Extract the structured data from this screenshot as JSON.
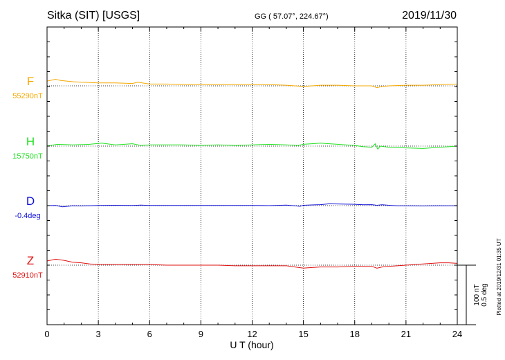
{
  "header": {
    "station": "Sitka (SIT)  [USGS]",
    "coords": "GG ( 57.07°, 224.67°)",
    "date": "2019/11/30"
  },
  "plotted_note": "Plotted at 2019/12/31 01:35 UT",
  "scale_bar": {
    "line1": "100 nT",
    "line2": "0.5 deg"
  },
  "colors": {
    "F": "#f5a800",
    "H": "#1fe01f",
    "D": "#1010d8",
    "Z": "#e01010"
  },
  "chart_data": {
    "type": "line",
    "title": "Sitka (SIT)  [USGS]",
    "xlabel": "U T (hour)",
    "ylabel": "",
    "xlim": [
      0,
      24
    ],
    "x_ticks": [
      0,
      3,
      6,
      9,
      12,
      15,
      18,
      21,
      24
    ],
    "x_tick_labels": [
      "0",
      "3",
      "6",
      "9",
      "12",
      "15",
      "18",
      "21",
      "24"
    ],
    "grid": true,
    "scale_nT_per_bar": 100,
    "series": [
      {
        "name": "F",
        "baseline_label": "55290nT",
        "baseline": 55290,
        "unit": "nT",
        "x": [
          0,
          0.5,
          0.8,
          1.5,
          2,
          3,
          4,
          5,
          5.3,
          6,
          7,
          8,
          9,
          10,
          11,
          12,
          13,
          14,
          14.5,
          15,
          15.5,
          16,
          17,
          18,
          19,
          19.3,
          19.6,
          20,
          21,
          22,
          23,
          24
        ],
        "y": [
          55298,
          55301,
          55299,
          55297,
          55296,
          55295,
          55295,
          55294,
          55296,
          55293,
          55293,
          55292,
          55292,
          55292,
          55292,
          55292,
          55292,
          55291,
          55290,
          55289,
          55290,
          55291,
          55291,
          55290,
          55290,
          55287,
          55289,
          55290,
          55291,
          55291,
          55292,
          55293
        ]
      },
      {
        "name": "H",
        "baseline_label": "15750nT",
        "baseline": 15750,
        "unit": "nT",
        "x": [
          0,
          0.6,
          1.5,
          2.5,
          3.2,
          4,
          5,
          5.5,
          6,
          7,
          8,
          9,
          10,
          11,
          12,
          13,
          14,
          14.7,
          15,
          15.5,
          16,
          16.5,
          17,
          18,
          18.5,
          19,
          19.2,
          19.35,
          19.5,
          20,
          21,
          22,
          23,
          24
        ],
        "y": [
          15750,
          15753,
          15752,
          15753,
          15755,
          15752,
          15754,
          15751,
          15752,
          15752,
          15752,
          15751,
          15752,
          15751,
          15752,
          15753,
          15752,
          15751,
          15753,
          15754,
          15755,
          15754,
          15753,
          15751,
          15749,
          15748,
          15754,
          15745,
          15750,
          15748,
          15747,
          15746,
          15748,
          15750
        ]
      },
      {
        "name": "D",
        "baseline_label": "-0.4deg",
        "baseline": -0.4,
        "unit": "deg",
        "x": [
          0,
          0.5,
          0.9,
          1.5,
          2,
          3,
          4,
          5,
          5.5,
          6,
          7,
          8,
          9,
          10,
          11,
          12,
          13,
          14,
          14.5,
          14.8,
          15,
          15.5,
          16,
          16.5,
          17,
          17.5,
          18,
          18.5,
          19,
          19.3,
          19.6,
          20,
          20.5,
          21,
          22,
          23,
          24
        ],
        "y": [
          -0.4,
          -0.398,
          -0.41,
          -0.402,
          -0.403,
          -0.398,
          -0.397,
          -0.398,
          -0.396,
          -0.399,
          -0.398,
          -0.398,
          -0.399,
          -0.398,
          -0.398,
          -0.398,
          -0.4,
          -0.396,
          -0.402,
          -0.406,
          -0.397,
          -0.394,
          -0.392,
          -0.385,
          -0.386,
          -0.388,
          -0.389,
          -0.393,
          -0.392,
          -0.397,
          -0.393,
          -0.397,
          -0.402,
          -0.401,
          -0.403,
          -0.402,
          -0.401
        ]
      },
      {
        "name": "Z",
        "baseline_label": "52910nT",
        "baseline": 52910,
        "unit": "nT",
        "x": [
          0,
          0.5,
          1,
          1.5,
          2,
          2.5,
          3,
          4,
          5,
          6,
          7,
          8,
          9,
          10,
          11,
          12,
          13,
          14,
          14.5,
          15,
          15.5,
          16,
          17,
          18,
          19,
          19.3,
          19.6,
          20,
          21,
          22,
          23,
          23.5,
          24
        ],
        "y": [
          52917,
          52920,
          52918,
          52915,
          52914,
          52912,
          52911,
          52911,
          52911,
          52911,
          52910,
          52910,
          52910,
          52910,
          52909,
          52909,
          52909,
          52909,
          52907,
          52905,
          52906,
          52907,
          52907,
          52908,
          52908,
          52905,
          52907,
          52908,
          52910,
          52912,
          52914,
          52914,
          52913
        ]
      }
    ]
  }
}
